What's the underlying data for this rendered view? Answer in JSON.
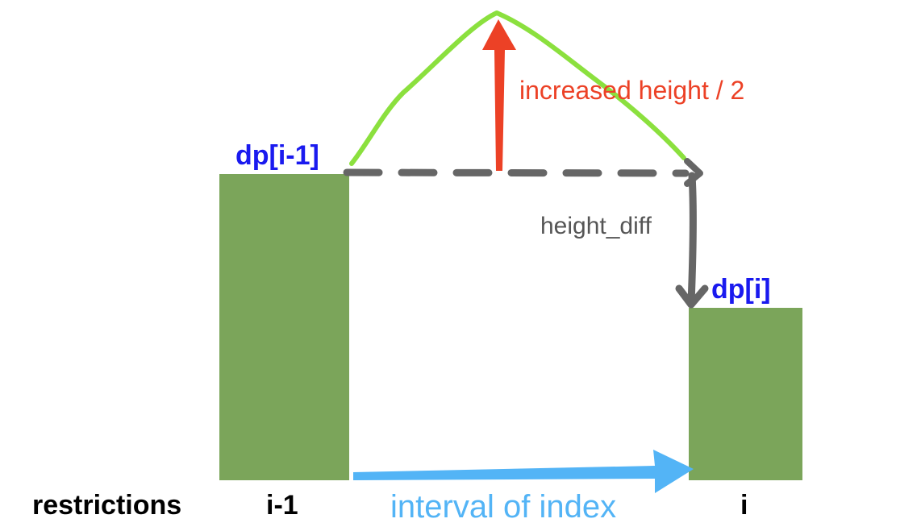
{
  "labels": {
    "dp_prev": "dp[i-1]",
    "dp_cur": "dp[i]",
    "increased_height": "increased height / 2",
    "height_diff": "height_diff",
    "restrictions": "restrictions",
    "index_prev": "i-1",
    "index_cur": "i",
    "interval": "interval of index"
  },
  "colors": {
    "bar": "#7ba55a",
    "dp_label": "#1a1aef",
    "red_arrow": "#ec4126",
    "green_curve": "#8be03e",
    "gray_line": "#666666",
    "gray_text": "#555555",
    "blue_arrow": "#53b4f6",
    "black_text": "#000000"
  }
}
